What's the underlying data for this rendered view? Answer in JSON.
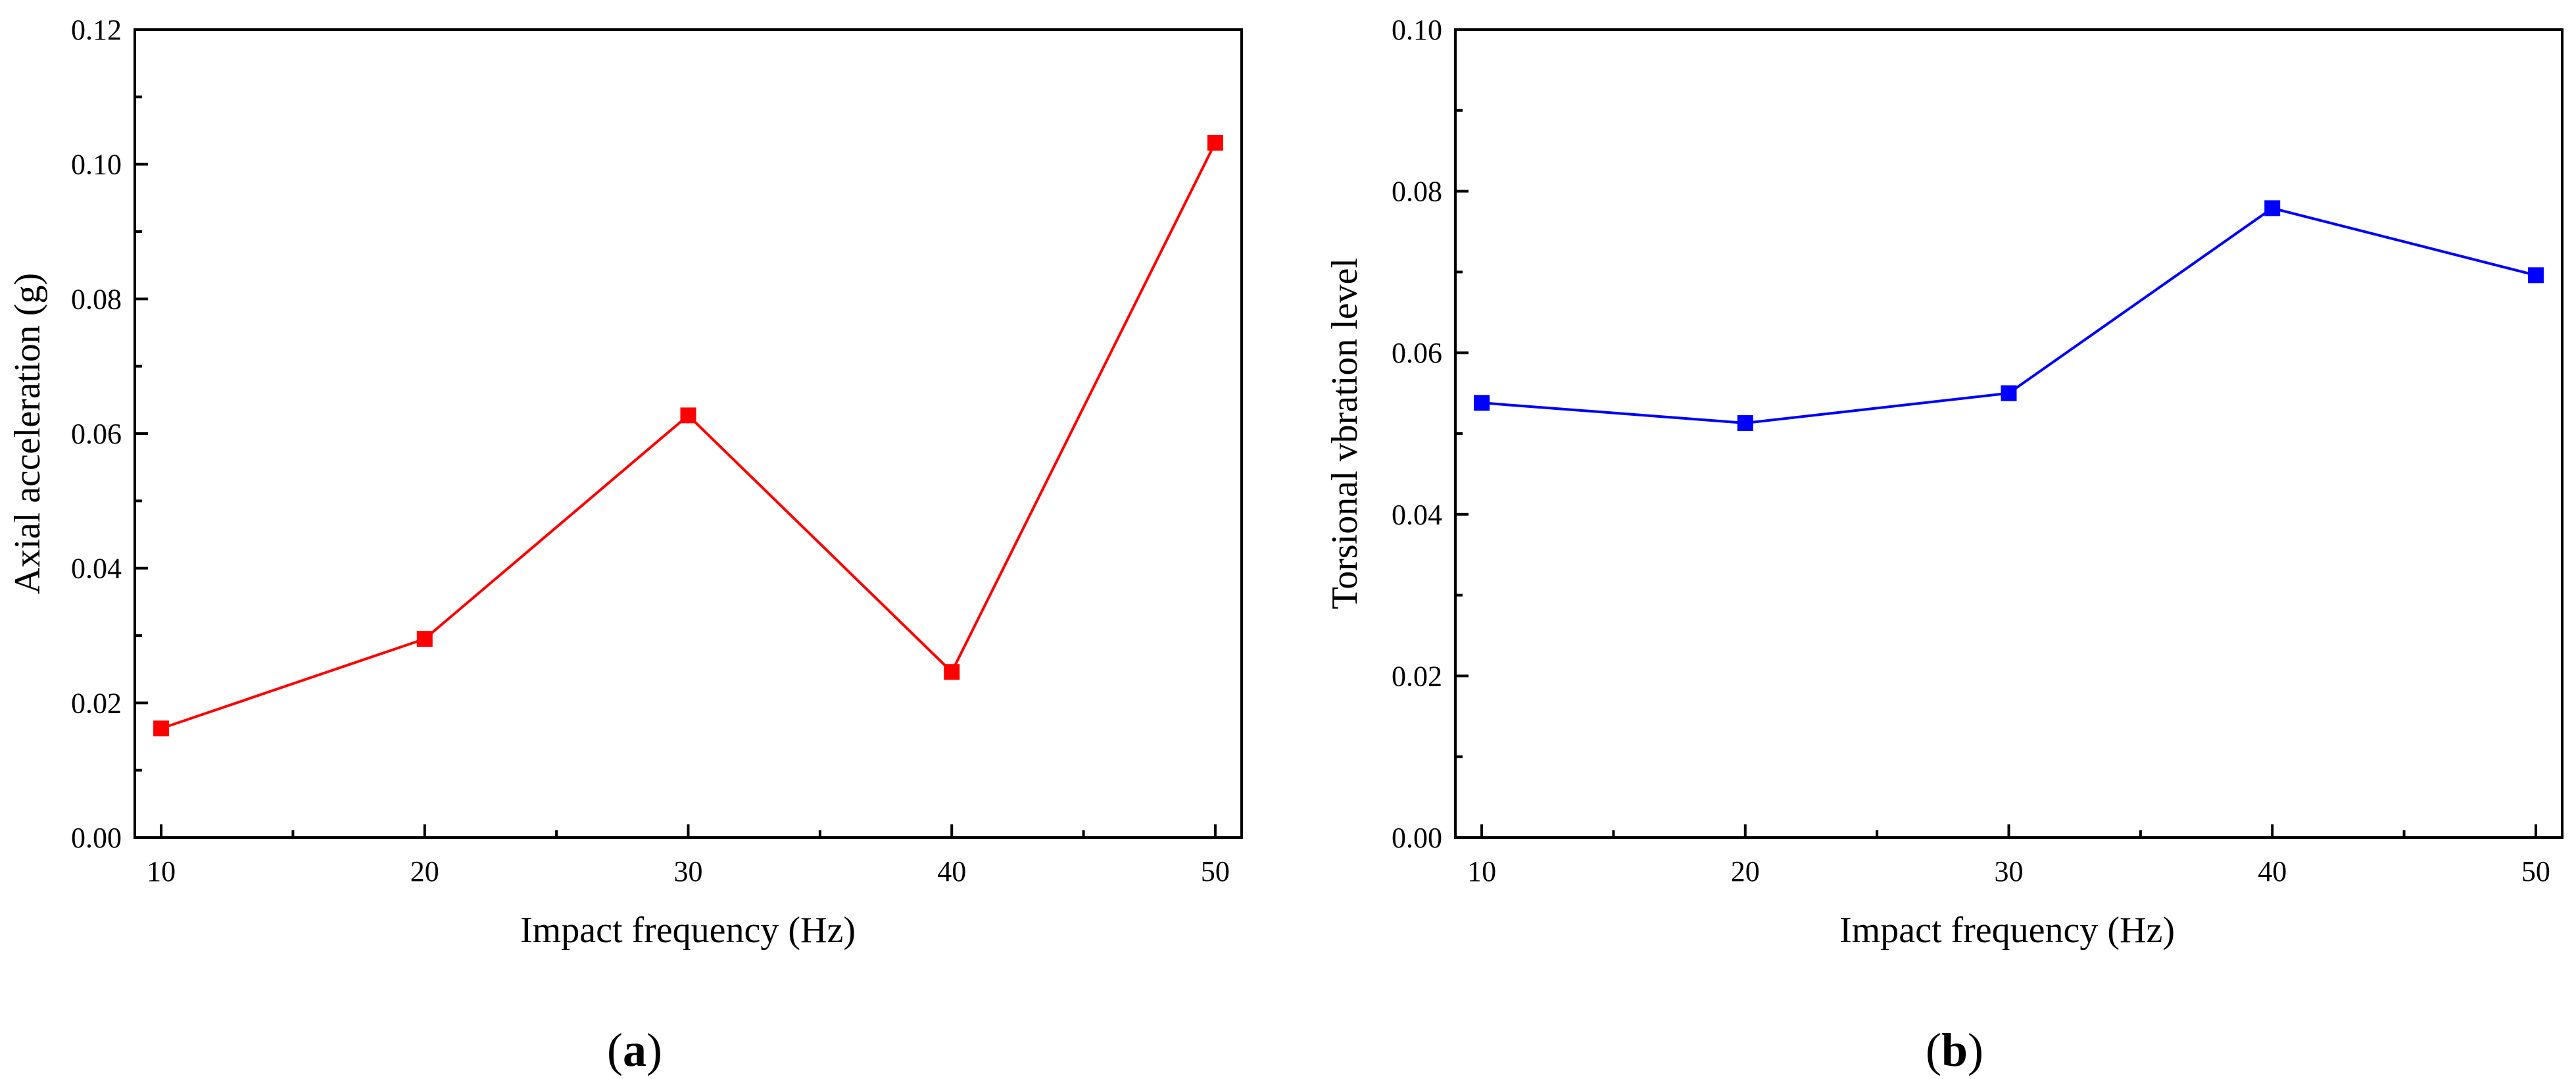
{
  "chart_data": [
    {
      "type": "line",
      "panel_label": "a",
      "title": "",
      "xlabel": "Impact frequency (Hz)",
      "ylabel": "Axial acceleration (g)",
      "xlim": [
        9,
        51
      ],
      "ylim": [
        0,
        0.12
      ],
      "x_ticks": [
        "10",
        "20",
        "30",
        "40",
        "50"
      ],
      "y_ticks": [
        "0.00",
        "0.02",
        "0.04",
        "0.06",
        "0.08",
        "0.10",
        "0.12"
      ],
      "grid": false,
      "legend": "none",
      "series": [
        {
          "color": "#ff0000",
          "marker": "square",
          "x": [
            10,
            20,
            30,
            40,
            50
          ],
          "values": [
            0.0162,
            0.0295,
            0.0627,
            0.0246,
            0.1032
          ]
        }
      ]
    },
    {
      "type": "line",
      "panel_label": "b",
      "title": "",
      "xlabel": "Impact frequency (Hz)",
      "ylabel": "Torsional vbration level",
      "xlim": [
        9,
        51
      ],
      "ylim": [
        0,
        0.1
      ],
      "x_ticks": [
        "10",
        "20",
        "30",
        "40",
        "50"
      ],
      "y_ticks": [
        "0.00",
        "0.02",
        "0.04",
        "0.06",
        "0.08",
        "0.10"
      ],
      "grid": false,
      "legend": "none",
      "series": [
        {
          "color": "#0000ff",
          "marker": "square",
          "x": [
            10,
            20,
            30,
            40,
            50
          ],
          "values": [
            0.0538,
            0.0513,
            0.055,
            0.0779,
            0.0696
          ]
        }
      ]
    }
  ]
}
